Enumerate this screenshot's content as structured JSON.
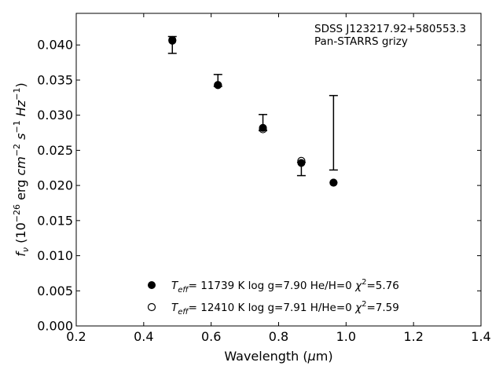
{
  "chart_data": {
    "type": "scatter",
    "title": "",
    "xlabel": "Wavelength (μm)",
    "ylabel": "fν (10⁻²⁶ erg cm⁻² s⁻¹ Hz⁻¹)",
    "xlim": [
      0.2,
      1.4
    ],
    "ylim": [
      0.0,
      0.0445
    ],
    "xticks": [
      "0.2",
      "0.4",
      "0.6",
      "0.8",
      "1.0",
      "1.2",
      "1.4"
    ],
    "yticks": [
      "0.000",
      "0.005",
      "0.010",
      "0.015",
      "0.020",
      "0.025",
      "0.030",
      "0.035",
      "0.040"
    ],
    "annotation": [
      "SDSS J123217.92+580553.3",
      "Pan-STARRS grizy"
    ],
    "grid": false,
    "legend_position": "bottom-center",
    "observed": {
      "x": [
        0.4849,
        0.6201,
        0.7535,
        0.8674,
        0.9628
      ],
      "y": [
        0.04,
        0.0349,
        0.0281,
        0.0225,
        0.0275
      ],
      "yerr_low": [
        0.0012,
        0.0008,
        0.0003,
        0.0011,
        0.0053
      ],
      "yerr_high": [
        0.0012,
        0.0009,
        0.002,
        0.0008,
        0.0053
      ]
    },
    "series": [
      {
        "name": "Teff= 11739 K  log g=7.90  He/H=0  χ²=5.76",
        "legend_parts": {
          "sym": "T",
          "sub": "eff",
          "body": "= 11739 K  log g=7.90  He/H=0  ",
          "chi": "χ",
          "sup": "2",
          "tail": "=5.76"
        },
        "marker": "filled-circle",
        "x": [
          0.4849,
          0.6201,
          0.7535,
          0.8674,
          0.9628
        ],
        "y": [
          0.0406,
          0.0343,
          0.0282,
          0.0232,
          0.0204
        ]
      },
      {
        "name": "Teff= 12410 K  log g=7.91  H/He=0  χ²=7.59",
        "legend_parts": {
          "sym": "T",
          "sub": "eff",
          "body": "= 12410 K  log g=7.91  H/He=0  ",
          "chi": "χ",
          "sup": "2",
          "tail": "=7.59"
        },
        "marker": "open-circle",
        "x": [
          0.4849,
          0.6201,
          0.7535,
          0.8674,
          0.9628
        ],
        "y": [
          0.0407,
          0.0343,
          0.028,
          0.0235,
          0.0204
        ]
      }
    ],
    "colors": {
      "marker": "#000000",
      "axes": "#000000",
      "background": "#ffffff"
    }
  }
}
